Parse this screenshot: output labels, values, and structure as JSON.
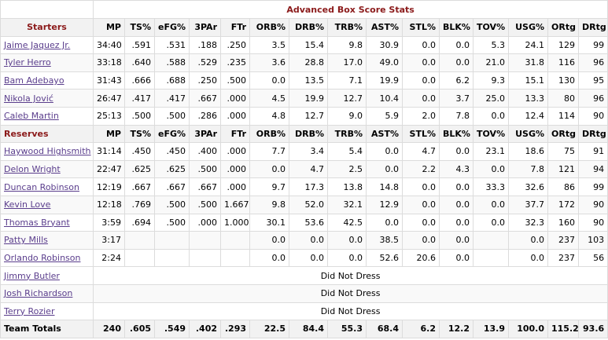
{
  "title": "Advanced Box Score Stats",
  "columns": [
    "MP",
    "TS%",
    "eFG%",
    "3PAr",
    "FTr",
    "ORB%",
    "DRB%",
    "TRB%",
    "AST%",
    "STL%",
    "BLK%",
    "TOV%",
    "USG%",
    "ORtg",
    "DRtg"
  ],
  "starters_label": "Starters",
  "reserves_label": "Reserves",
  "starters": [
    {
      "name": "Jaime Jaquez Jr.",
      "stats": [
        "34:40",
        ".591",
        ".531",
        ".188",
        ".250",
        "3.5",
        "15.4",
        "9.8",
        "30.9",
        "0.0",
        "0.0",
        "5.3",
        "24.1",
        "129",
        "99"
      ]
    },
    {
      "name": "Tyler Herro",
      "stats": [
        "33:18",
        ".640",
        ".588",
        ".529",
        ".235",
        "3.6",
        "28.8",
        "17.0",
        "49.0",
        "0.0",
        "0.0",
        "21.0",
        "31.8",
        "116",
        "96"
      ]
    },
    {
      "name": "Bam Adebayo",
      "stats": [
        "31:43",
        ".666",
        ".688",
        ".250",
        ".500",
        "0.0",
        "13.5",
        "7.1",
        "19.9",
        "0.0",
        "6.2",
        "9.3",
        "15.1",
        "130",
        "95"
      ]
    },
    {
      "name": "Nikola Jović",
      "stats": [
        "26:47",
        ".417",
        ".417",
        ".667",
        ".000",
        "4.5",
        "19.9",
        "12.7",
        "10.4",
        "0.0",
        "3.7",
        "25.0",
        "13.3",
        "80",
        "96"
      ]
    },
    {
      "name": "Caleb Martin",
      "stats": [
        "25:13",
        ".500",
        ".500",
        ".286",
        ".000",
        "4.8",
        "12.7",
        "9.0",
        "5.9",
        "2.0",
        "7.8",
        "0.0",
        "12.4",
        "114",
        "90"
      ]
    }
  ],
  "reserves": [
    {
      "name": "Haywood Highsmith",
      "stats": [
        "31:14",
        ".450",
        ".450",
        ".400",
        ".000",
        "7.7",
        "3.4",
        "5.4",
        "0.0",
        "4.7",
        "0.0",
        "23.1",
        "18.6",
        "75",
        "91"
      ]
    },
    {
      "name": "Delon Wright",
      "stats": [
        "22:47",
        ".625",
        ".625",
        ".500",
        ".000",
        "0.0",
        "4.7",
        "2.5",
        "0.0",
        "2.2",
        "4.3",
        "0.0",
        "7.8",
        "121",
        "94"
      ]
    },
    {
      "name": "Duncan Robinson",
      "stats": [
        "12:19",
        ".667",
        ".667",
        ".667",
        ".000",
        "9.7",
        "17.3",
        "13.8",
        "14.8",
        "0.0",
        "0.0",
        "33.3",
        "32.6",
        "86",
        "99"
      ]
    },
    {
      "name": "Kevin Love",
      "stats": [
        "12:18",
        ".769",
        ".500",
        ".500",
        "1.667",
        "9.8",
        "52.0",
        "32.1",
        "12.9",
        "0.0",
        "0.0",
        "0.0",
        "37.7",
        "172",
        "90"
      ]
    },
    {
      "name": "Thomas Bryant",
      "stats": [
        "3:59",
        ".694",
        ".500",
        ".000",
        "1.000",
        "30.1",
        "53.6",
        "42.5",
        "0.0",
        "0.0",
        "0.0",
        "0.0",
        "32.3",
        "160",
        "90"
      ]
    },
    {
      "name": "Patty Mills",
      "stats": [
        "3:17",
        "",
        "",
        "",
        "",
        "0.0",
        "0.0",
        "0.0",
        "38.5",
        "0.0",
        "0.0",
        "",
        "0.0",
        "237",
        "103"
      ]
    },
    {
      "name": "Orlando Robinson",
      "stats": [
        "2:24",
        "",
        "",
        "",
        "",
        "0.0",
        "0.0",
        "0.0",
        "52.6",
        "20.6",
        "0.0",
        "",
        "0.0",
        "237",
        "56"
      ]
    }
  ],
  "dnd": [
    {
      "name": "Jimmy Butler",
      "status": "Did Not Dress"
    },
    {
      "name": "Josh Richardson",
      "status": "Did Not Dress"
    },
    {
      "name": "Terry Rozier",
      "status": "Did Not Dress"
    }
  ],
  "totals": {
    "label": "Team Totals",
    "stats": [
      "240",
      ".605",
      ".549",
      ".402",
      ".293",
      "22.5",
      "84.4",
      "55.3",
      "68.4",
      "6.2",
      "12.2",
      "13.9",
      "100.0",
      "115.2",
      "93.6"
    ]
  }
}
